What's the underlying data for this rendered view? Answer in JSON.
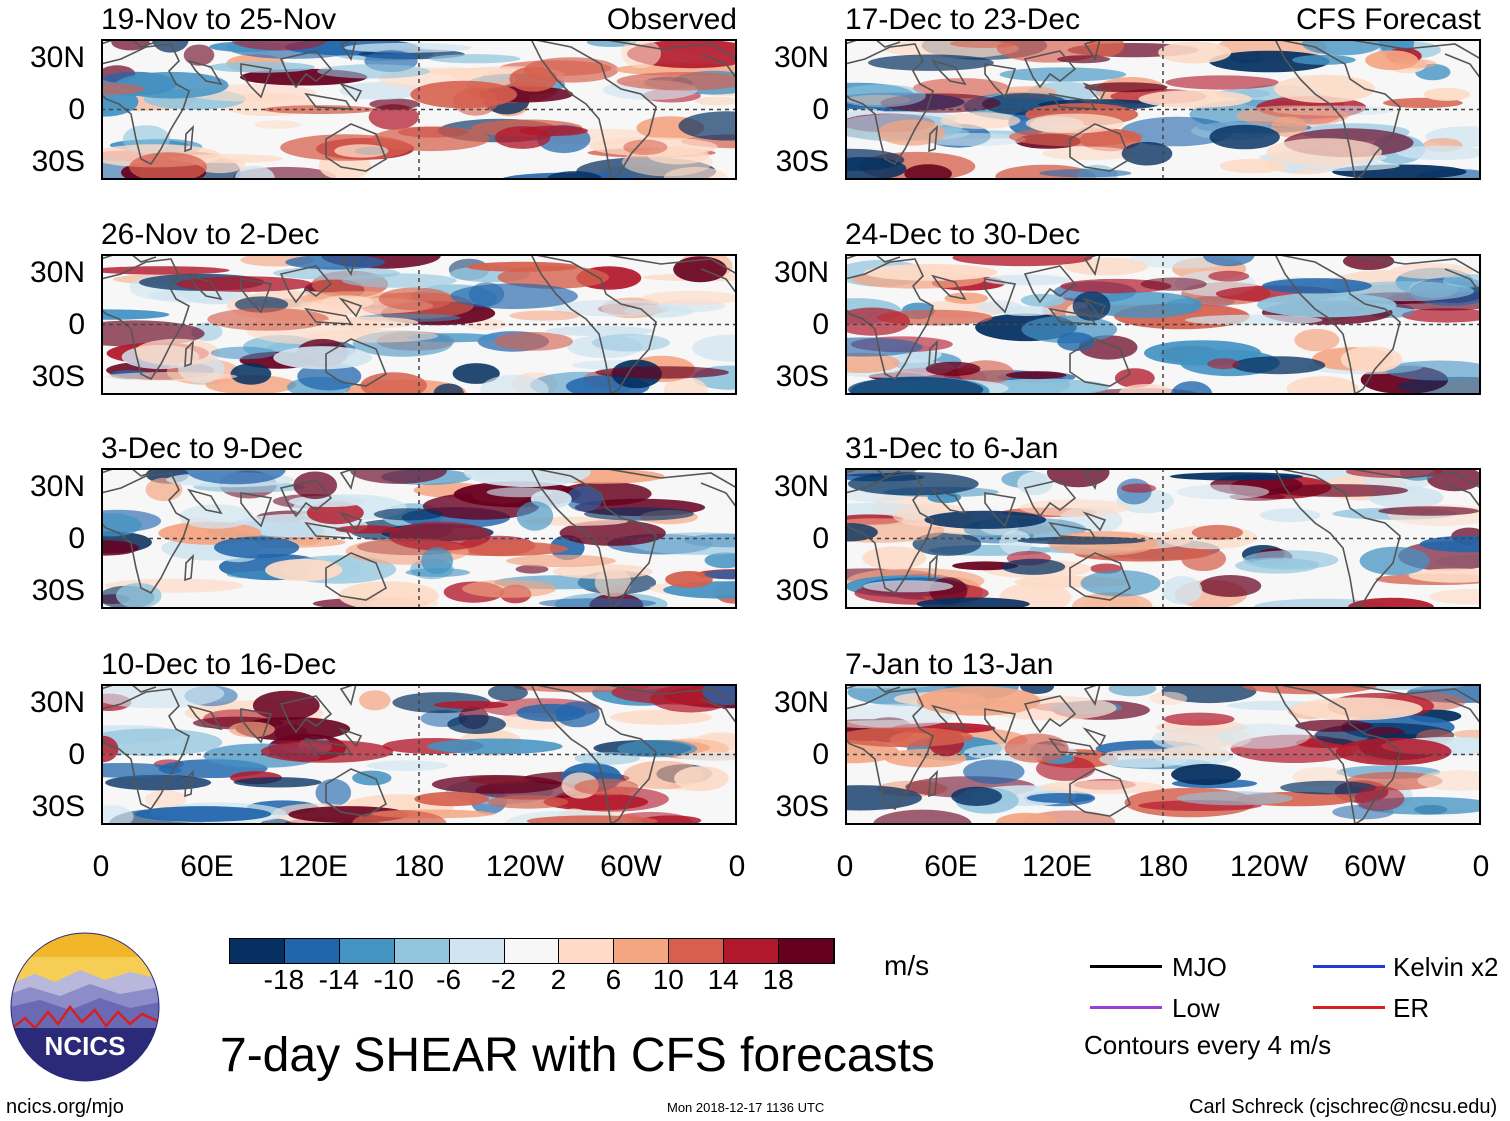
{
  "panels": [
    {
      "title": "19-Nov to 25-Nov",
      "label": "Observed",
      "side": "left",
      "row": 0
    },
    {
      "title": "26-Nov to 2-Dec",
      "label": "",
      "side": "left",
      "row": 1
    },
    {
      "title": "3-Dec to 9-Dec",
      "label": "",
      "side": "left",
      "row": 2
    },
    {
      "title": "10-Dec to 16-Dec",
      "label": "",
      "side": "left",
      "row": 3
    },
    {
      "title": "17-Dec to 23-Dec",
      "label": "CFS Forecast",
      "side": "right",
      "row": 0
    },
    {
      "title": "24-Dec to 30-Dec",
      "label": "",
      "side": "right",
      "row": 1
    },
    {
      "title": "31-Dec to 6-Jan",
      "label": "",
      "side": "right",
      "row": 2
    },
    {
      "title": "7-Jan to 13-Jan",
      "label": "",
      "side": "right",
      "row": 3
    }
  ],
  "lat_labels": [
    "30N",
    "0",
    "30S"
  ],
  "lon_labels": [
    "0",
    "60E",
    "120E",
    "180",
    "120W",
    "60W",
    "0"
  ],
  "colorbar": {
    "colors": [
      "#053061",
      "#2166ac",
      "#4393c3",
      "#92c5de",
      "#d1e5f0",
      "#f7f7f7",
      "#fddbc7",
      "#f4a582",
      "#d6604d",
      "#b2182b",
      "#67001f"
    ],
    "ticks": [
      "-18",
      "-14",
      "-10",
      "-6",
      "-2",
      "2",
      "6",
      "10",
      "14",
      "18"
    ],
    "unit": "m/s"
  },
  "legend": {
    "items": [
      {
        "label": "MJO",
        "color": "#000000"
      },
      {
        "label": "Kelvin x2",
        "color": "#1f3ad6"
      },
      {
        "label": "Low",
        "color": "#9b3fd6"
      },
      {
        "label": "ER",
        "color": "#d62020"
      }
    ],
    "note": "Contours every 4 m/s"
  },
  "title": "7-day SHEAR with CFS forecasts",
  "logo_text": "NCICS",
  "footer": {
    "left": "ncics.org/mjo",
    "center": "Mon 2018-12-17 1136 UTC",
    "right": "Carl Schreck (cjschrec@ncsu.edu)"
  }
}
